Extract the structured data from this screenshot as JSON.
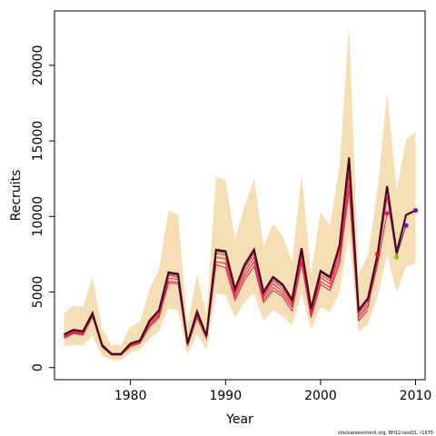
{
  "chart_data": {
    "type": "line",
    "xlabel": "Year",
    "ylabel": "Recruits",
    "footnote": "stockassessment.org, BH12-test01, r1675",
    "xlim": [
      1972,
      2011
    ],
    "ylim": [
      -800,
      23600
    ],
    "x_ticks": [
      1980,
      1990,
      2000,
      2010
    ],
    "y_ticks": [
      0,
      5000,
      10000,
      15000,
      20000
    ],
    "colors": {
      "band": "#f5deb3",
      "main": "#3d0f1f",
      "retro": "#e8224a",
      "purple_line": "#7a1f7a",
      "point_red": "#ff0000",
      "point_magenta": "#e0109a",
      "point_green": "#7ecb20",
      "point_purple": "#6a1fa0"
    },
    "years": [
      1973,
      1974,
      1975,
      1976,
      1977,
      1978,
      1979,
      1980,
      1981,
      1982,
      1983,
      1984,
      1985,
      1986,
      1987,
      1988,
      1989,
      1990,
      1991,
      1992,
      1993,
      1994,
      1995,
      1996,
      1997,
      1998,
      1999,
      2000,
      2001,
      2002,
      2003,
      2004,
      2005,
      2006,
      2007,
      2008,
      2009,
      2010
    ],
    "recruits": [
      2200,
      2500,
      2400,
      3600,
      1500,
      900,
      900,
      1600,
      1800,
      3100,
      3800,
      6300,
      6200,
      1600,
      3700,
      2100,
      7800,
      7700,
      5200,
      6800,
      7800,
      5000,
      6000,
      5500,
      4500,
      7900,
      3900,
      6400,
      6000,
      8100,
      13900,
      3800,
      4600,
      7500,
      12000,
      7600,
      10100,
      10400
    ],
    "ci_lower": [
      1400,
      1500,
      1500,
      2100,
      800,
      500,
      500,
      1000,
      1200,
      1900,
      2400,
      3900,
      3800,
      900,
      2200,
      1200,
      4900,
      4800,
      3300,
      4300,
      4900,
      3100,
      3800,
      3400,
      2800,
      4900,
      2500,
      4000,
      3700,
      5000,
      8900,
      2300,
      2900,
      4700,
      7500,
      5000,
      6700,
      6900
    ],
    "ci_upper": [
      3600,
      4100,
      4000,
      6000,
      2600,
      1500,
      1500,
      2700,
      3000,
      5200,
      6500,
      10400,
      10100,
      2800,
      6200,
      3500,
      12600,
      12400,
      8500,
      10700,
      12500,
      8000,
      9500,
      8700,
      7000,
      12800,
      6200,
      10300,
      9400,
      13400,
      22600,
      6100,
      7500,
      11800,
      18200,
      11700,
      15100,
      15600
    ],
    "retro_paths": [
      {
        "name": "retro-1",
        "to_year": 2009,
        "values": [
          2150,
          2450,
          2350,
          3550,
          1450,
          880,
          880,
          1570,
          1770,
          3050,
          3700,
          6200,
          6100,
          1570,
          3650,
          2070,
          7700,
          7600,
          5100,
          6700,
          7700,
          4900,
          5900,
          5400,
          4400,
          7800,
          3850,
          6300,
          5900,
          8000,
          13700,
          3700,
          4500,
          7300,
          11800,
          7400,
          9400
        ]
      },
      {
        "name": "retro-2",
        "to_year": 2008,
        "values": [
          2100,
          2400,
          2300,
          3500,
          1420,
          860,
          860,
          1540,
          1740,
          3000,
          3620,
          6100,
          6000,
          1540,
          3600,
          2040,
          7550,
          7450,
          5000,
          6550,
          7550,
          4800,
          5750,
          5250,
          4300,
          7600,
          3750,
          6150,
          5750,
          7800,
          13300,
          3600,
          4350,
          7100,
          11300,
          7300
        ]
      },
      {
        "name": "retro-3",
        "to_year": 2007,
        "values": [
          2050,
          2350,
          2250,
          3450,
          1400,
          850,
          850,
          1500,
          1700,
          2900,
          3500,
          5900,
          5850,
          1500,
          3500,
          2000,
          7300,
          7200,
          4850,
          6300,
          7300,
          4650,
          5550,
          5050,
          4150,
          7400,
          3650,
          5950,
          5550,
          7500,
          12800,
          3450,
          4150,
          6800,
          10200
        ]
      },
      {
        "name": "retro-4",
        "to_year": 2006,
        "values": [
          2000,
          2300,
          2200,
          3400,
          1380,
          840,
          840,
          1450,
          1650,
          2800,
          3400,
          5700,
          5650,
          1450,
          3400,
          1950,
          7000,
          6900,
          4650,
          6050,
          7000,
          4450,
          5300,
          4850,
          4000,
          7100,
          3500,
          5700,
          5300,
          7200,
          12200,
          3300,
          4000,
          7500
        ]
      },
      {
        "name": "retro-5",
        "to_year": 2005,
        "values": [
          1950,
          2250,
          2150,
          3350,
          1350,
          820,
          820,
          1400,
          1600,
          2700,
          3300,
          5600,
          5550,
          1400,
          3300,
          1900,
          6800,
          6600,
          4450,
          5800,
          6700,
          4300,
          5100,
          4700,
          3750,
          6900,
          3300,
          5500,
          5100,
          6900,
          11700,
          3100,
          3800
        ]
      }
    ],
    "end_points": [
      {
        "year": 2006,
        "value": 7500,
        "color": "#ff0000"
      },
      {
        "year": 2007,
        "value": 10200,
        "color": "#e0109a"
      },
      {
        "year": 2008,
        "value": 7300,
        "color": "#7ecb20"
      },
      {
        "year": 2009,
        "value": 9400,
        "color": "#6a1fa0"
      },
      {
        "year": 2010,
        "value": 10400,
        "color": "#6a1fa0"
      }
    ]
  }
}
